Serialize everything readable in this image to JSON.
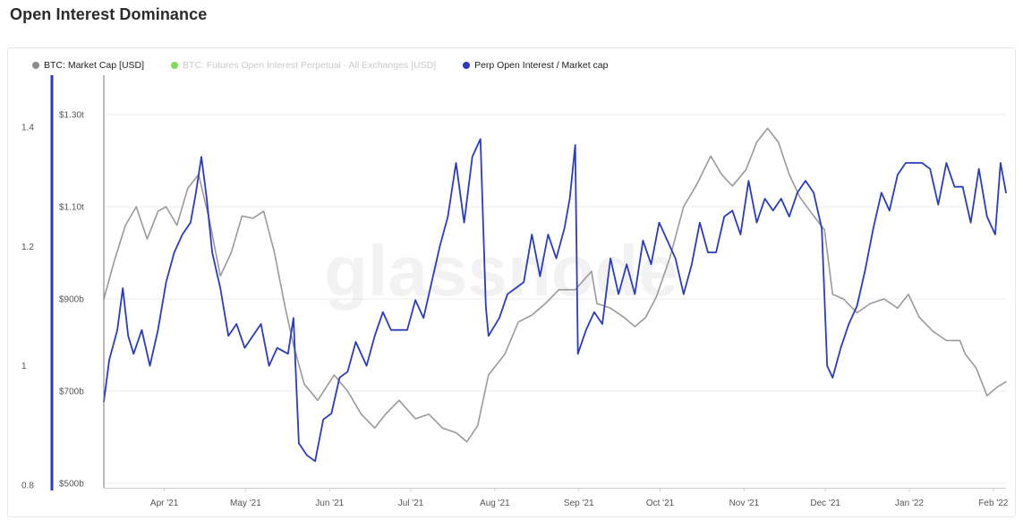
{
  "page": {
    "title": "Open Interest Dominance"
  },
  "legend": [
    {
      "label": "BTC: Market Cap [USD]",
      "color": "#8c8c8c",
      "active": true
    },
    {
      "label": "BTC: Futures Open Interest Perpetual - All Exchanges [USD]",
      "color": "#7ed957",
      "active": false
    },
    {
      "label": "Perp Open Interest / Market cap",
      "color": "#2a3bbf",
      "active": true
    }
  ],
  "watermark": "glassnode",
  "chart_data": {
    "type": "line",
    "x_ticks": [
      "Apr '21",
      "May '21",
      "Jun '21",
      "Jul '21",
      "Aug '21",
      "Sep '21",
      "Oct '21",
      "Nov '21",
      "Dec '21",
      "Jan '22",
      "Feb '22"
    ],
    "y_left": {
      "ticks": [
        "1.4",
        "1.2",
        "1",
        "0.8"
      ],
      "range": [
        0.8,
        1.45
      ]
    },
    "y_right": {
      "ticks": [
        "$1.30t",
        "$1.10t",
        "$900b",
        "$700b",
        "$500b"
      ],
      "range": [
        500,
        1350
      ]
    },
    "series": [
      {
        "name": "BTC: Market Cap [USD]",
        "axis": "y_right",
        "color": "#9a9a9a",
        "x": [
          "2021-03-10",
          "2021-03-14",
          "2021-03-18",
          "2021-03-22",
          "2021-03-26",
          "2021-03-30",
          "2021-04-02",
          "2021-04-06",
          "2021-04-10",
          "2021-04-14",
          "2021-04-18",
          "2021-04-22",
          "2021-04-26",
          "2021-04-30",
          "2021-05-04",
          "2021-05-08",
          "2021-05-12",
          "2021-05-16",
          "2021-05-19",
          "2021-05-23",
          "2021-05-28",
          "2021-06-03",
          "2021-06-08",
          "2021-06-13",
          "2021-06-18",
          "2021-06-22",
          "2021-06-27",
          "2021-07-03",
          "2021-07-08",
          "2021-07-13",
          "2021-07-18",
          "2021-07-22",
          "2021-07-26",
          "2021-07-30",
          "2021-08-05",
          "2021-08-10",
          "2021-08-15",
          "2021-08-20",
          "2021-08-25",
          "2021-08-31",
          "2021-09-06",
          "2021-09-08",
          "2021-09-13",
          "2021-09-18",
          "2021-09-22",
          "2021-09-26",
          "2021-09-30",
          "2021-10-05",
          "2021-10-10",
          "2021-10-15",
          "2021-10-20",
          "2021-10-24",
          "2021-10-28",
          "2021-11-02",
          "2021-11-06",
          "2021-11-10",
          "2021-11-14",
          "2021-11-18",
          "2021-11-22",
          "2021-11-27",
          "2021-12-01",
          "2021-12-04",
          "2021-12-08",
          "2021-12-13",
          "2021-12-18",
          "2021-12-23",
          "2021-12-28",
          "2022-01-01",
          "2022-01-05",
          "2022-01-10",
          "2022-01-15",
          "2022-01-20",
          "2022-01-22",
          "2022-01-26",
          "2022-01-30",
          "2022-02-03",
          "2022-02-06"
        ],
        "values": [
          900,
          985,
          1060,
          1100,
          1030,
          1090,
          1100,
          1060,
          1140,
          1170,
          1070,
          950,
          1000,
          1080,
          1075,
          1090,
          1000,
          880,
          800,
          715,
          680,
          735,
          700,
          650,
          620,
          650,
          680,
          640,
          650,
          620,
          610,
          590,
          625,
          735,
          780,
          850,
          865,
          890,
          920,
          920,
          960,
          890,
          880,
          860,
          840,
          860,
          905,
          990,
          1100,
          1150,
          1210,
          1170,
          1145,
          1180,
          1240,
          1270,
          1240,
          1170,
          1120,
          1080,
          1050,
          910,
          900,
          870,
          890,
          900,
          880,
          910,
          860,
          830,
          810,
          810,
          780,
          750,
          690,
          710,
          720
        ]
      },
      {
        "name": "Perp Open Interest / Market cap",
        "axis": "y_left",
        "color": "#2a3bbf",
        "x": [
          "2021-03-10",
          "2021-03-12",
          "2021-03-15",
          "2021-03-17",
          "2021-03-19",
          "2021-03-21",
          "2021-03-24",
          "2021-03-27",
          "2021-03-30",
          "2021-04-02",
          "2021-04-05",
          "2021-04-08",
          "2021-04-11",
          "2021-04-13",
          "2021-04-15",
          "2021-04-17",
          "2021-04-19",
          "2021-04-22",
          "2021-04-25",
          "2021-04-28",
          "2021-05-01",
          "2021-05-04",
          "2021-05-07",
          "2021-05-10",
          "2021-05-13",
          "2021-05-17",
          "2021-05-19",
          "2021-05-21",
          "2021-05-24",
          "2021-05-27",
          "2021-05-30",
          "2021-06-02",
          "2021-06-05",
          "2021-06-08",
          "2021-06-11",
          "2021-06-15",
          "2021-06-18",
          "2021-06-21",
          "2021-06-24",
          "2021-06-27",
          "2021-06-30",
          "2021-07-03",
          "2021-07-06",
          "2021-07-09",
          "2021-07-12",
          "2021-07-15",
          "2021-07-18",
          "2021-07-21",
          "2021-07-24",
          "2021-07-27",
          "2021-07-29",
          "2021-07-30",
          "2021-08-03",
          "2021-08-06",
          "2021-08-09",
          "2021-08-12",
          "2021-08-15",
          "2021-08-18",
          "2021-08-21",
          "2021-08-24",
          "2021-08-27",
          "2021-08-29",
          "2021-08-31",
          "2021-09-01",
          "2021-09-04",
          "2021-09-07",
          "2021-09-10",
          "2021-09-13",
          "2021-09-16",
          "2021-09-19",
          "2021-09-22",
          "2021-09-25",
          "2021-09-28",
          "2021-10-01",
          "2021-10-04",
          "2021-10-07",
          "2021-10-10",
          "2021-10-13",
          "2021-10-16",
          "2021-10-19",
          "2021-10-22",
          "2021-10-25",
          "2021-10-28",
          "2021-10-31",
          "2021-11-03",
          "2021-11-06",
          "2021-11-09",
          "2021-11-12",
          "2021-11-15",
          "2021-11-18",
          "2021-11-21",
          "2021-11-24",
          "2021-11-27",
          "2021-11-30",
          "2021-12-02",
          "2021-12-04",
          "2021-12-07",
          "2021-12-10",
          "2021-12-13",
          "2021-12-16",
          "2021-12-19",
          "2021-12-22",
          "2021-12-25",
          "2021-12-28",
          "2021-12-31",
          "2022-01-03",
          "2022-01-06",
          "2022-01-09",
          "2022-01-12",
          "2022-01-15",
          "2022-01-18",
          "2022-01-21",
          "2022-01-24",
          "2022-01-27",
          "2022-01-30",
          "2022-02-02",
          "2022-02-04",
          "2022-02-06"
        ],
        "values": [
          0.94,
          1.01,
          1.06,
          1.13,
          1.05,
          1.02,
          1.06,
          1.0,
          1.06,
          1.14,
          1.19,
          1.22,
          1.24,
          1.29,
          1.35,
          1.28,
          1.19,
          1.13,
          1.05,
          1.07,
          1.03,
          1.05,
          1.07,
          1.0,
          1.03,
          1.02,
          1.08,
          0.87,
          0.85,
          0.84,
          0.91,
          0.92,
          0.98,
          0.99,
          1.04,
          1.0,
          1.05,
          1.09,
          1.06,
          1.06,
          1.06,
          1.11,
          1.08,
          1.14,
          1.2,
          1.25,
          1.34,
          1.24,
          1.35,
          1.38,
          1.1,
          1.05,
          1.08,
          1.12,
          1.13,
          1.14,
          1.22,
          1.15,
          1.22,
          1.18,
          1.23,
          1.28,
          1.37,
          1.02,
          1.06,
          1.09,
          1.07,
          1.18,
          1.12,
          1.17,
          1.12,
          1.21,
          1.17,
          1.24,
          1.21,
          1.18,
          1.12,
          1.17,
          1.24,
          1.19,
          1.19,
          1.25,
          1.26,
          1.22,
          1.31,
          1.24,
          1.28,
          1.26,
          1.28,
          1.25,
          1.29,
          1.31,
          1.29,
          1.23,
          1.0,
          0.98,
          1.03,
          1.07,
          1.1,
          1.16,
          1.23,
          1.29,
          1.26,
          1.32,
          1.34,
          1.34,
          1.34,
          1.33,
          1.27,
          1.34,
          1.3,
          1.3,
          1.24,
          1.33,
          1.25,
          1.22,
          1.34,
          1.29
        ]
      }
    ]
  }
}
